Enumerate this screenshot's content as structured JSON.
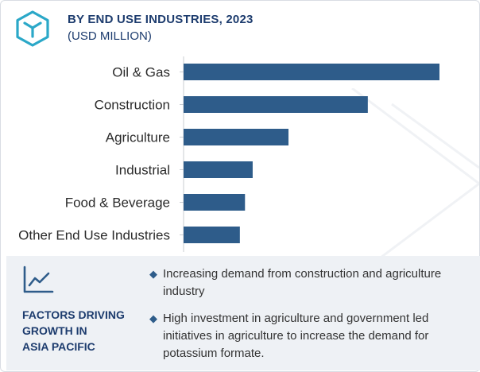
{
  "header": {
    "title": "BY END USE INDUSTRIES, 2023",
    "subtitle": "(USD MILLION)",
    "logo_icon": "cube-logo-icon"
  },
  "chart_data": {
    "type": "bar",
    "orientation": "horizontal",
    "title": "BY END USE INDUSTRIES, 2023",
    "subtitle": "(USD MILLION)",
    "categories": [
      "Oil & Gas",
      "Construction",
      "Agriculture",
      "Industrial",
      "Food & Beverage",
      "Other End Use Industries"
    ],
    "values": [
      100,
      72,
      41,
      27,
      24,
      22
    ],
    "value_axis_visible": false,
    "grid": false,
    "bar_color": "#2e5c8a"
  },
  "factors": {
    "icon": "trend-line-icon",
    "heading": "FACTORS DRIVING\nGROWTH IN\nASIA PACIFIC",
    "bullets": [
      "Increasing demand from construction and agriculture industry",
      "High investment in agriculture and government led initiatives in agriculture to increase the demand for potassium formate."
    ]
  },
  "colors": {
    "brand": "#1d3c6e",
    "accent": "#2ba8c8",
    "bar": "#2e5c8a",
    "panel": "#eef1f5"
  }
}
